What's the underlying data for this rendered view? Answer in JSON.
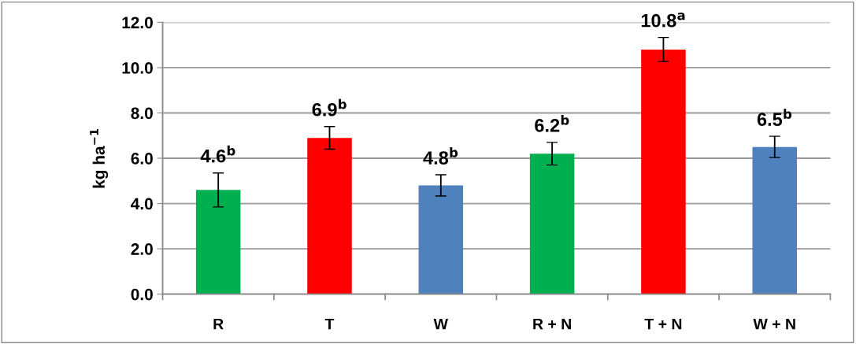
{
  "chart_data": {
    "type": "bar",
    "ylabel": "kg ha$^{−1}$",
    "categories": [
      "R",
      "T",
      "W",
      "R + N",
      "T + N",
      "W + N"
    ],
    "series": [
      {
        "color": "#00b050",
        "values": [
          4.6,
          null,
          null,
          6.2,
          null,
          null
        ],
        "errors": [
          0.75,
          null,
          null,
          0.5,
          null,
          null
        ],
        "value_labels": [
          "4.6$^{b}$",
          null,
          null,
          "6.2$^{b}$",
          null,
          null
        ]
      },
      {
        "color": "#ff0000",
        "values": [
          null,
          6.9,
          null,
          null,
          10.8,
          null
        ],
        "errors": [
          null,
          0.5,
          null,
          null,
          0.53,
          null
        ],
        "value_labels": [
          null,
          "6.9$^{b}$",
          null,
          null,
          "10.8$^{a}$",
          null
        ]
      },
      {
        "color": "#4f81bd",
        "values": [
          null,
          null,
          4.8,
          null,
          null,
          6.5
        ],
        "errors": [
          null,
          null,
          0.47,
          null,
          null,
          0.47
        ],
        "value_labels": [
          null,
          null,
          "4.8$^{b}$",
          null,
          null,
          "6.5$^{b}$"
        ]
      }
    ],
    "ylim": [
      0,
      12
    ],
    "yticks": [
      {
        "value": 0,
        "label": "0.0"
      },
      {
        "value": 2,
        "label": "2.0"
      },
      {
        "value": 4,
        "label": "4.0"
      },
      {
        "value": 6,
        "label": "6.0"
      },
      {
        "value": 8,
        "label": "8.0"
      },
      {
        "value": 10,
        "label": "10.0"
      },
      {
        "value": 12,
        "label": "12.0"
      }
    ],
    "grid": "y"
  }
}
